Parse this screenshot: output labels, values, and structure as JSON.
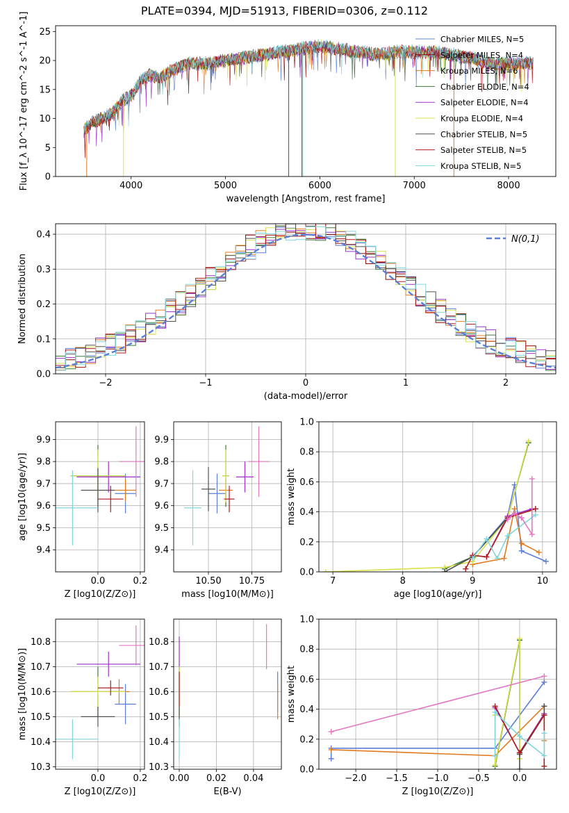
{
  "figure": {
    "title": "PLATE=0394, MJD=51913, FIBERID=0306, z=0.112"
  },
  "chart_data": [
    {
      "id": "spectrum",
      "type": "line",
      "xlabel": "wavelength [Angstrom, rest frame]",
      "ylabel": "Flux [f_λ 10^-17 erg cm^-2 s^-1 A^-1]",
      "xlim": [
        3200,
        8500
      ],
      "ylim": [
        0,
        26
      ],
      "xticks": [
        "4000",
        "5000",
        "6000",
        "7000",
        "8000"
      ],
      "yticks": [
        "0",
        "5",
        "10",
        "15",
        "20",
        "25"
      ],
      "grid": false,
      "legend_position": "top-right",
      "series": [
        {
          "name": "Chabrier MILES, N_SSP=5",
          "color": "#5a7fd6"
        },
        {
          "name": "Salpeter MILES, N_SSP=4",
          "color": "#8b0000"
        },
        {
          "name": "Kroupa MILES, N_SSP=6",
          "color": "#e07b21"
        },
        {
          "name": "Chabrier ELODIE, N_SSP=4",
          "color": "#3b7a3b"
        },
        {
          "name": "Salpeter ELODIE, N_SSP=4",
          "color": "#9b30c9"
        },
        {
          "name": "Kroupa ELODIE, N_SSP=4",
          "color": "#d9e04a"
        },
        {
          "name": "Chabrier STELIB, N_SSP=5",
          "color": "#505050"
        },
        {
          "name": "Salpeter STELIB, N_SSP=5",
          "color": "#b01c1c"
        },
        {
          "name": "Kroupa STELIB, N_SSP=5",
          "color": "#7fd6dc"
        }
      ],
      "continuum": {
        "x": [
          3500,
          3600,
          3700,
          3800,
          3900,
          4000,
          4100,
          4200,
          4300,
          4400,
          4600,
          4800,
          5000,
          5200,
          5400,
          5600,
          5800,
          6000,
          6200,
          6400,
          6600,
          6800,
          7000,
          7200,
          7400,
          7600,
          7800,
          8000,
          8200,
          8260
        ],
        "y": [
          8,
          9.5,
          10,
          11,
          13,
          14,
          16.5,
          17.5,
          17,
          18,
          19.5,
          19.5,
          20,
          20.5,
          21,
          21.5,
          22,
          22.5,
          22,
          21.5,
          21,
          21.5,
          21.5,
          21.5,
          21,
          20.5,
          19.5,
          19.5,
          19.5,
          19.5
        ]
      },
      "features": [
        {
          "x": 3530,
          "y": 0,
          "color": "#e07b21"
        },
        {
          "x": 3920,
          "y": 0,
          "color": "#d9e04a"
        },
        {
          "x": 5670,
          "y": 0,
          "color": "#505050"
        },
        {
          "x": 5810,
          "y": 0,
          "color": "#505050"
        },
        {
          "x": 5820,
          "y": 0,
          "color": "#7fd6dc"
        },
        {
          "x": 6800,
          "y": 0,
          "color": "#d9e04a"
        },
        {
          "x": 7420,
          "y": 0,
          "color": "#e07b21"
        }
      ]
    },
    {
      "id": "residuals",
      "type": "line",
      "xlabel": "(data-model)/error",
      "ylabel": "Normed distribution",
      "xlim": [
        -2.5,
        2.5
      ],
      "ylim": [
        0,
        0.43
      ],
      "xticks": [
        "−2",
        "−1",
        "0",
        "1",
        "2"
      ],
      "yticks": [
        "0.0",
        "0.1",
        "0.2",
        "0.3",
        "0.4"
      ],
      "grid": true,
      "legend_position": "top-right",
      "legend": [
        "N(0,1)"
      ],
      "gaussian": {
        "mean": 0,
        "sigma": 1,
        "color": "#5a7fd6"
      },
      "hist_bin_width": 0.1
    },
    {
      "id": "age-vs-Z",
      "type": "scatter",
      "xlabel": "Z [log10(Z/Z⊙)]",
      "ylabel": "age [log10(age/yr)]",
      "xlim": [
        -0.2,
        0.22
      ],
      "ylim": [
        9.3,
        9.98
      ],
      "xticks": [
        "0.0",
        "0.2"
      ],
      "yticks": [
        "9.4",
        "9.5",
        "9.6",
        "9.7",
        "9.8",
        "9.9"
      ],
      "grid": true,
      "points": [
        {
          "x": 0.13,
          "y": 9.655,
          "ex": 0.05,
          "ey": 0.09,
          "color": "#5a7fd6"
        },
        {
          "x": 0.13,
          "y": 9.67,
          "ex": 0.05,
          "ey": 0.05,
          "color": "#e07b21"
        },
        {
          "x": 0.0,
          "y": 9.735,
          "ex": 0.13,
          "ey": 0.14,
          "color": "#3b7a3b"
        },
        {
          "x": 0.05,
          "y": 9.73,
          "ex": 0.15,
          "ey": 0.07,
          "color": "#9b30c9"
        },
        {
          "x": 0.0,
          "y": 9.735,
          "ex": 0.13,
          "ey": 0.12,
          "color": "#d9e04a"
        },
        {
          "x": 0.0,
          "y": 9.67,
          "ex": 0.08,
          "ey": 0.1,
          "color": "#505050"
        },
        {
          "x": 0.06,
          "y": 9.63,
          "ex": 0.06,
          "ey": 0.06,
          "color": "#b01c1c"
        },
        {
          "x": -0.12,
          "y": 9.59,
          "ex": 0.12,
          "ey": 0.17,
          "color": "#7fd6dc"
        },
        {
          "x": 0.18,
          "y": 9.8,
          "ex": 0.08,
          "ey": 0.16,
          "color": "#e377c2"
        }
      ]
    },
    {
      "id": "age-vs-mass",
      "type": "scatter",
      "xlabel": "mass [log10(M/M⊙)]",
      "ylabel": "",
      "xlim": [
        10.3,
        10.92
      ],
      "ylim": [
        9.3,
        9.98
      ],
      "xticks": [
        "10.50",
        "10.75"
      ],
      "yticks": [
        "9.4",
        "9.5",
        "9.6",
        "9.7",
        "9.8",
        "9.9"
      ],
      "grid": true,
      "points": [
        {
          "x": 10.55,
          "y": 9.655,
          "ex": 0.05,
          "ey": 0.09,
          "color": "#5a7fd6"
        },
        {
          "x": 10.6,
          "y": 9.67,
          "ex": 0.04,
          "ey": 0.05,
          "color": "#e07b21"
        },
        {
          "x": 10.6,
          "y": 9.735,
          "ex": 0.02,
          "ey": 0.14,
          "color": "#3b7a3b"
        },
        {
          "x": 10.71,
          "y": 9.73,
          "ex": 0.05,
          "ey": 0.07,
          "color": "#9b30c9"
        },
        {
          "x": 10.6,
          "y": 9.735,
          "ex": 0.02,
          "ey": 0.12,
          "color": "#d9e04a"
        },
        {
          "x": 10.5,
          "y": 9.675,
          "ex": 0.04,
          "ey": 0.1,
          "color": "#505050"
        },
        {
          "x": 10.62,
          "y": 9.63,
          "ex": 0.03,
          "ey": 0.06,
          "color": "#b01c1c"
        },
        {
          "x": 10.41,
          "y": 9.59,
          "ex": 0.05,
          "ey": 0.17,
          "color": "#7fd6dc"
        },
        {
          "x": 10.79,
          "y": 9.8,
          "ex": 0.06,
          "ey": 0.16,
          "color": "#e377c2"
        }
      ]
    },
    {
      "id": "mass-weight-vs-age",
      "type": "line",
      "xlabel": "age [log10(age/yr)]",
      "ylabel": "mass weight",
      "xlim": [
        6.8,
        10.2
      ],
      "ylim": [
        0,
        1
      ],
      "xticks": [
        "7",
        "8",
        "9",
        "10"
      ],
      "yticks": [
        "0.0",
        "0.2",
        "0.4",
        "0.6",
        "0.8",
        "1.0"
      ],
      "grid": true,
      "series": [
        {
          "color": "#5a7fd6",
          "x": [
            9.0,
            9.5,
            9.6,
            9.7,
            10.05
          ],
          "y": [
            0.1,
            0.37,
            0.58,
            0.14,
            0.07
          ]
        },
        {
          "color": "#e07b21",
          "x": [
            9.0,
            9.45,
            9.6,
            9.7,
            9.95
          ],
          "y": [
            0.05,
            0.09,
            0.42,
            0.19,
            0.13
          ]
        },
        {
          "color": "#3b7a3b",
          "x": [
            8.6,
            9.0,
            9.5,
            9.8
          ],
          "y": [
            0.02,
            0.1,
            0.36,
            0.86
          ]
        },
        {
          "color": "#9b30c9",
          "x": [
            9.0,
            9.2,
            9.5,
            9.85
          ],
          "y": [
            0.11,
            0.1,
            0.37,
            0.42
          ]
        },
        {
          "color": "#d9e04a",
          "x": [
            6.9,
            8.6,
            9.0,
            9.5,
            9.8
          ],
          "y": [
            0.0,
            0.03,
            0.07,
            0.36,
            0.87
          ]
        },
        {
          "color": "#505050",
          "x": [
            8.6,
            9.0,
            9.5,
            9.9
          ],
          "y": [
            0.0,
            0.1,
            0.36,
            0.42
          ]
        },
        {
          "color": "#b01c1c",
          "x": [
            8.9,
            9.0,
            9.2,
            9.5,
            9.9
          ],
          "y": [
            0.02,
            0.11,
            0.1,
            0.36,
            0.42
          ]
        },
        {
          "color": "#7fd6dc",
          "x": [
            9.0,
            9.2,
            9.35,
            9.5,
            9.9
          ],
          "y": [
            0.09,
            0.22,
            0.09,
            0.24,
            0.38
          ]
        },
        {
          "color": "#e377c2",
          "x": [
            9.5,
            9.6,
            9.7,
            9.85,
            9.85
          ],
          "y": [
            0.35,
            0.39,
            0.36,
            0.25,
            0.62
          ]
        }
      ]
    },
    {
      "id": "mass-vs-Z",
      "type": "scatter",
      "xlabel": "Z [log10(Z/Z⊙)]",
      "ylabel": "mass [log10(M/M⊙)]",
      "xlim": [
        -0.2,
        0.22
      ],
      "ylim": [
        10.29,
        10.89
      ],
      "xticks": [
        "0.0",
        "0.2"
      ],
      "yticks": [
        "10.3",
        "10.4",
        "10.5",
        "10.6",
        "10.7",
        "10.8"
      ],
      "grid": true,
      "points": [
        {
          "x": 0.13,
          "y": 10.55,
          "ex": 0.05,
          "ey": 0.08,
          "color": "#5a7fd6"
        },
        {
          "x": 0.1,
          "y": 10.6,
          "ex": 0.05,
          "ey": 0.05,
          "color": "#e07b21"
        },
        {
          "x": 0.0,
          "y": 10.6,
          "ex": 0.13,
          "ey": 0.1,
          "color": "#3b7a3b"
        },
        {
          "x": 0.05,
          "y": 10.71,
          "ex": 0.15,
          "ey": 0.05,
          "color": "#9b30c9"
        },
        {
          "x": 0.0,
          "y": 10.6,
          "ex": 0.13,
          "ey": 0.06,
          "color": "#d9e04a"
        },
        {
          "x": 0.0,
          "y": 10.5,
          "ex": 0.08,
          "ey": 0.04,
          "color": "#505050"
        },
        {
          "x": 0.06,
          "y": 10.615,
          "ex": 0.06,
          "ey": 0.03,
          "color": "#b01c1c"
        },
        {
          "x": -0.12,
          "y": 10.41,
          "ex": 0.12,
          "ey": 0.08,
          "color": "#7fd6dc"
        },
        {
          "x": 0.18,
          "y": 10.785,
          "ex": 0.08,
          "ey": 0.08,
          "color": "#e377c2"
        }
      ]
    },
    {
      "id": "mass-vs-EBV",
      "type": "scatter",
      "xlabel": "E(B-V)",
      "ylabel": "",
      "xlim": [
        -0.003,
        0.055
      ],
      "ylim": [
        10.29,
        10.89
      ],
      "xticks": [
        "0.00",
        "0.02",
        "0.04"
      ],
      "yticks": [
        "10.3",
        "10.4",
        "10.5",
        "10.6",
        "10.7",
        "10.8"
      ],
      "grid": true,
      "points": [
        {
          "x": 0.053,
          "y": 10.6,
          "ex": 0,
          "ey": 0.08,
          "color": "#5a7fd6"
        },
        {
          "x": 0.053,
          "y": 10.56,
          "ex": 0,
          "ey": 0.07,
          "color": "#e07b21"
        },
        {
          "x": 0.0,
          "y": 10.6,
          "ex": 0,
          "ey": 0.1,
          "color": "#3b7a3b"
        },
        {
          "x": 0.0,
          "y": 10.75,
          "ex": 0,
          "ey": 0.07,
          "color": "#9b30c9"
        },
        {
          "x": 0.0,
          "y": 10.6,
          "ex": 0,
          "ey": 0.1,
          "color": "#d9e04a"
        },
        {
          "x": 0.0,
          "y": 10.5,
          "ex": 0,
          "ey": 0.04,
          "color": "#505050"
        },
        {
          "x": 0.0,
          "y": 10.61,
          "ex": 0,
          "ey": 0.07,
          "color": "#b01c1c"
        },
        {
          "x": 0.0,
          "y": 10.41,
          "ex": 0,
          "ey": 0.08,
          "color": "#7fd6dc"
        },
        {
          "x": 0.047,
          "y": 10.78,
          "ex": 0,
          "ey": 0.09,
          "color": "#e377c2"
        }
      ]
    },
    {
      "id": "mass-weight-vs-Z",
      "type": "line",
      "xlabel": "Z [log10(Z/Z⊙)]",
      "ylabel": "mass weight",
      "xlim": [
        -2.45,
        0.45
      ],
      "ylim": [
        0,
        1
      ],
      "xticks": [
        "−2.0",
        "−1.5",
        "−1.0",
        "−0.5",
        "0.0"
      ],
      "yticks": [
        "0.0",
        "0.2",
        "0.4",
        "0.6",
        "0.8",
        "1.0"
      ],
      "grid": true,
      "series": [
        {
          "color": "#5a7fd6",
          "x": [
            -2.3,
            -2.3,
            -0.3,
            0.3
          ],
          "y": [
            0.07,
            0.14,
            0.14,
            0.58
          ]
        },
        {
          "color": "#e07b21",
          "x": [
            -2.3,
            -0.3,
            0.3,
            0.3
          ],
          "y": [
            0.13,
            0.09,
            0.42,
            0.19
          ]
        },
        {
          "color": "#3b7a3b",
          "x": [
            -0.3,
            0.0,
            0.0
          ],
          "y": [
            0.02,
            0.86,
            0.1
          ]
        },
        {
          "color": "#9b30c9",
          "x": [
            -0.3,
            0.0,
            0.3
          ],
          "y": [
            0.41,
            0.11,
            0.37
          ]
        },
        {
          "color": "#d9e04a",
          "x": [
            -0.3,
            -0.3,
            0.0,
            0.0
          ],
          "y": [
            0.36,
            0.03,
            0.87,
            0.07
          ]
        },
        {
          "color": "#505050",
          "x": [
            0.0,
            0.0,
            0.3,
            0.3
          ],
          "y": [
            0.0,
            0.1,
            0.36,
            0.42
          ]
        },
        {
          "color": "#b01c1c",
          "x": [
            -0.3,
            0.0,
            0.3,
            0.3
          ],
          "y": [
            0.42,
            0.11,
            0.36,
            0.02
          ]
        },
        {
          "color": "#7fd6dc",
          "x": [
            -0.3,
            -0.3,
            0.0,
            0.3,
            0.3
          ],
          "y": [
            0.09,
            0.38,
            0.22,
            0.09,
            0.24
          ]
        },
        {
          "color": "#e377c2",
          "x": [
            -2.3,
            0.3
          ],
          "y": [
            0.25,
            0.62
          ]
        }
      ]
    }
  ]
}
